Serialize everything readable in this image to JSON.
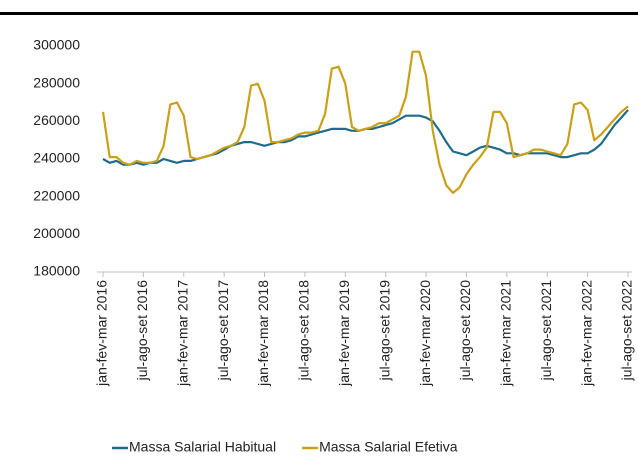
{
  "chart_data": {
    "type": "line",
    "categories": [
      "jan-fev-mar 2016",
      null,
      null,
      null,
      null,
      null,
      "jul-ago-set 2016",
      null,
      null,
      null,
      null,
      null,
      "jan-fev-mar 2017",
      null,
      null,
      null,
      null,
      null,
      "jul-ago-set 2017",
      null,
      null,
      null,
      null,
      null,
      "jan-fev-mar 2018",
      null,
      null,
      null,
      null,
      null,
      "jul-ago-set 2018",
      null,
      null,
      null,
      null,
      null,
      "jan-fev-mar 2019",
      null,
      null,
      null,
      null,
      null,
      "jul-ago-set 2019",
      null,
      null,
      null,
      null,
      null,
      "jan-fev-mar 2020",
      null,
      null,
      null,
      null,
      null,
      "jul-ago-set 2020",
      null,
      null,
      null,
      null,
      null,
      "jan-fev-mar 2021",
      null,
      null,
      null,
      null,
      null,
      "jul-ago-set 2021",
      null,
      null,
      null,
      null,
      null,
      "jan-fev-mar 2022",
      null,
      null,
      null,
      null,
      null,
      "jul-ago-set 2022"
    ],
    "series": [
      {
        "name": "Massa Salarial Habitual",
        "color": "#1f6b8a",
        "values": [
          240000,
          238000,
          239000,
          237000,
          237000,
          238000,
          237000,
          238000,
          238000,
          240000,
          239000,
          238000,
          239000,
          239000,
          240000,
          241000,
          242000,
          243000,
          245000,
          247000,
          248000,
          249000,
          249000,
          248000,
          247000,
          248000,
          249000,
          249000,
          250000,
          252000,
          252000,
          253000,
          254000,
          255000,
          256000,
          256000,
          256000,
          255000,
          255000,
          256000,
          256000,
          257000,
          258000,
          259000,
          261000,
          263000,
          263000,
          263000,
          262000,
          260000,
          255000,
          249000,
          244000,
          243000,
          242000,
          244000,
          246000,
          247000,
          246000,
          245000,
          243000,
          243000,
          242000,
          243000,
          243000,
          243000,
          243000,
          242000,
          241000,
          241000,
          242000,
          243000,
          243000,
          245000,
          248000,
          253000,
          258000,
          262000,
          266000
        ]
      },
      {
        "name": "Massa Salarial Efetiva",
        "color": "#c9a018",
        "values": [
          265000,
          241000,
          241000,
          238000,
          237000,
          239000,
          238000,
          238000,
          239000,
          247000,
          269000,
          270000,
          263000,
          241000,
          240000,
          241000,
          242000,
          244000,
          246000,
          247000,
          249000,
          257000,
          279000,
          280000,
          271000,
          249000,
          249000,
          250000,
          251000,
          253000,
          254000,
          254000,
          255000,
          264000,
          288000,
          289000,
          280000,
          257000,
          255000,
          256000,
          257000,
          259000,
          259000,
          261000,
          263000,
          273000,
          297000,
          297000,
          284000,
          255000,
          237000,
          226000,
          222000,
          225000,
          232000,
          237000,
          241000,
          246000,
          265000,
          265000,
          259000,
          241000,
          242000,
          243000,
          245000,
          245000,
          244000,
          243000,
          242000,
          248000,
          269000,
          270000,
          266000,
          250000,
          253000,
          257000,
          261000,
          265000,
          268000
        ]
      }
    ],
    "ylim": [
      180000,
      300000
    ],
    "yticks": [
      180000,
      200000,
      220000,
      240000,
      260000,
      280000,
      300000
    ],
    "legend": "bottom"
  }
}
